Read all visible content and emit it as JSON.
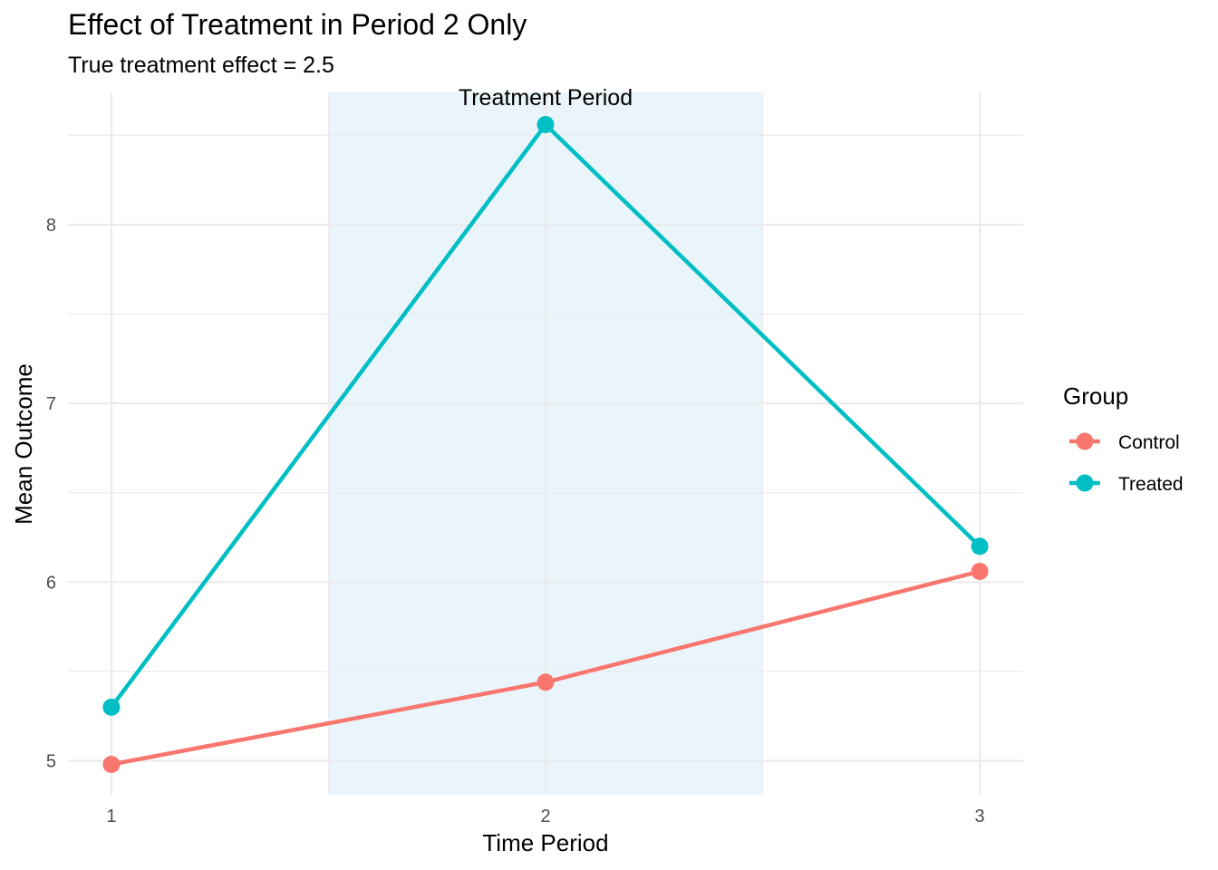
{
  "chart_data": {
    "type": "line",
    "title": "Effect of Treatment in Period 2 Only",
    "subtitle": "True treatment effect = 2.5",
    "xlabel": "Time Period",
    "ylabel": "Mean Outcome",
    "x": [
      1,
      2,
      3
    ],
    "x_tick_labels": [
      "1",
      "2",
      "3"
    ],
    "xlim": [
      0.9,
      3.1
    ],
    "y_ticks": [
      5,
      6,
      7,
      8
    ],
    "y_tick_labels": [
      "5",
      "6",
      "7",
      "8"
    ],
    "ylim": [
      4.81,
      8.74
    ],
    "grid": true,
    "legend": {
      "title": "Group",
      "placement": "right"
    },
    "series": [
      {
        "name": "Control",
        "color": "#F8766D",
        "values": [
          4.98,
          5.44,
          6.06
        ]
      },
      {
        "name": "Treated",
        "color": "#00BFC4",
        "values": [
          5.3,
          8.56,
          6.2
        ]
      }
    ],
    "highlight_region": {
      "x_start": 1.5,
      "x_end": 2.5,
      "label": "Treatment Period",
      "fill": "#D6EAF8"
    }
  }
}
